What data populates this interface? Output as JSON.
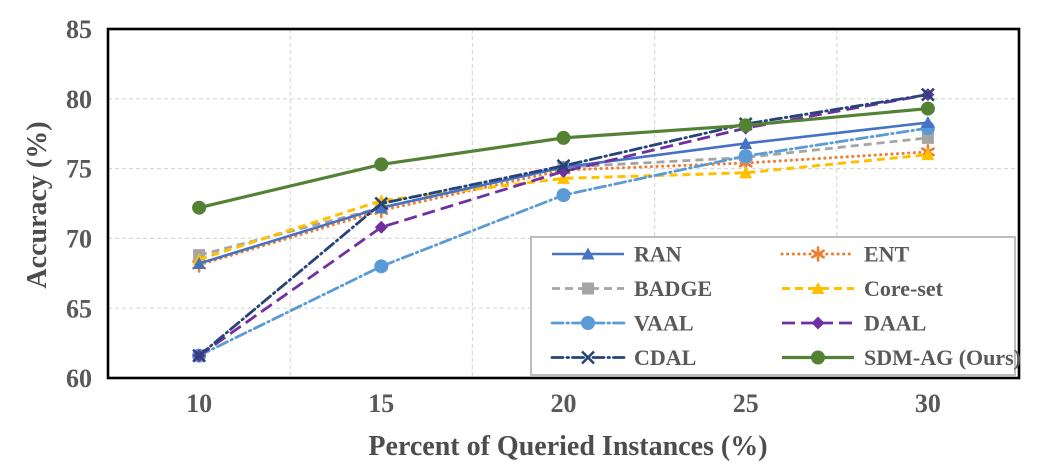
{
  "window": {
    "background": "#FFFFFF"
  },
  "chart_data": {
    "type": "line",
    "title": "",
    "xlabel": "Percent of Queried Instances (%)",
    "ylabel": "Accuracy (%)",
    "categories": [
      "10",
      "15",
      "20",
      "25",
      "30"
    ],
    "x_values": [
      10,
      15,
      20,
      25,
      30
    ],
    "ylim": [
      60,
      85
    ],
    "y_ticks": [
      60,
      65,
      70,
      75,
      80,
      85
    ],
    "grid": {
      "horizontal": "dashed",
      "vertical": "dashed-at-category-boundaries",
      "color": "#D9D9D9"
    },
    "plot_border_color": "#000000",
    "axis_text_color": "#595959",
    "axis_title_color": "#4D4D4D",
    "legend": {
      "position": "inside-bottom-right",
      "columns": 2,
      "background": "#FFFFFF",
      "border_color": "#BDBDBD"
    },
    "series": [
      {
        "name": "RAN",
        "color": "#4472C4",
        "line": "solid",
        "marker": "triangle",
        "values": [
          68.2,
          72.2,
          75.1,
          76.8,
          78.3
        ]
      },
      {
        "name": "ENT",
        "color": "#ED7D31",
        "line": "dotted",
        "marker": "asterisk",
        "values": [
          68.1,
          72.0,
          74.9,
          75.4,
          76.2
        ]
      },
      {
        "name": "BADGE",
        "color": "#A5A5A5",
        "line": "dashed",
        "marker": "square",
        "values": [
          68.8,
          72.2,
          75.1,
          75.8,
          77.2
        ]
      },
      {
        "name": "Core-set",
        "color": "#FFC000",
        "line": "dashed",
        "marker": "triangle",
        "values": [
          68.5,
          72.7,
          74.3,
          74.7,
          76.0
        ]
      },
      {
        "name": "VAAL",
        "color": "#5B9BD5",
        "line": "dash-dot",
        "marker": "circle",
        "values": [
          61.6,
          68.0,
          73.1,
          75.9,
          77.9
        ]
      },
      {
        "name": "DAAL",
        "color": "#7030A0",
        "line": "long-dash",
        "marker": "diamond",
        "values": [
          61.6,
          70.8,
          74.8,
          77.9,
          80.3
        ]
      },
      {
        "name": "CDAL",
        "color": "#264478",
        "line": "dash-dot",
        "marker": "x",
        "values": [
          61.6,
          72.5,
          75.2,
          78.2,
          80.3
        ]
      },
      {
        "name": "SDM-AG (Ours)",
        "color": "#548235",
        "line": "solid",
        "marker": "circle",
        "values": [
          72.2,
          75.3,
          77.2,
          78.1,
          79.3
        ]
      }
    ],
    "legend_order": [
      "RAN",
      "ENT",
      "BADGE",
      "Core-set",
      "VAAL",
      "DAAL",
      "CDAL",
      "SDM-AG (Ours)"
    ],
    "draw_order": [
      "ENT",
      "BADGE",
      "Core-set",
      "VAAL",
      "RAN",
      "DAAL",
      "CDAL",
      "SDM-AG (Ours)"
    ]
  }
}
